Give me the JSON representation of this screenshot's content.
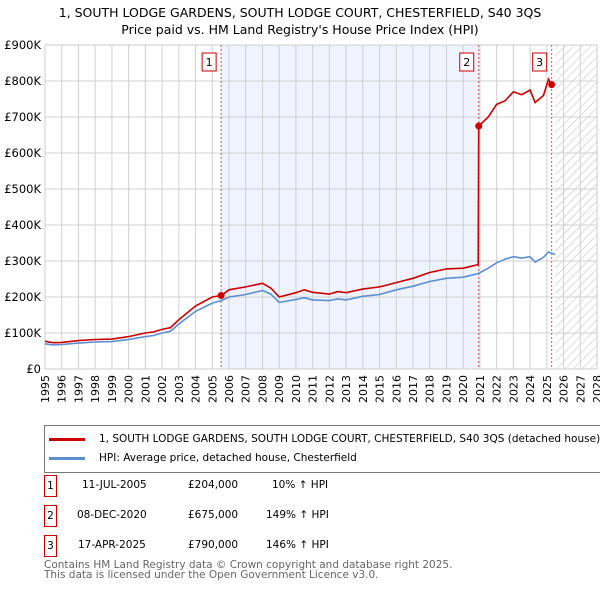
{
  "chart_data": {
    "type": "line",
    "title": "1, SOUTH LODGE GARDENS, SOUTH LODGE COURT, CHESTERFIELD, S40 3QS",
    "subtitle": "Price paid vs. HM Land Registry's House Price Index (HPI)",
    "xlim": [
      1995,
      2028
    ],
    "ylim": [
      0,
      900000
    ],
    "x_ticks": [
      "1995",
      "1996",
      "1997",
      "1998",
      "1999",
      "2000",
      "2001",
      "2002",
      "2003",
      "2004",
      "2005",
      "2006",
      "2007",
      "2008",
      "2009",
      "2010",
      "2011",
      "2012",
      "2013",
      "2014",
      "2015",
      "2016",
      "2017",
      "2018",
      "2019",
      "2020",
      "2021",
      "2022",
      "2023",
      "2024",
      "2025",
      "2026",
      "2027",
      "2028"
    ],
    "y_ticks": [
      {
        "v": 0,
        "label": "£0"
      },
      {
        "v": 100000,
        "label": "£100K"
      },
      {
        "v": 200000,
        "label": "£200K"
      },
      {
        "v": 300000,
        "label": "£300K"
      },
      {
        "v": 400000,
        "label": "£400K"
      },
      {
        "v": 500000,
        "label": "£500K"
      },
      {
        "v": 600000,
        "label": "£600K"
      },
      {
        "v": 700000,
        "label": "£700K"
      },
      {
        "v": 800000,
        "label": "£800K"
      },
      {
        "v": 900000,
        "label": "£900K"
      }
    ],
    "grid": true,
    "shaded_range": [
      2005.53,
      2020.93
    ],
    "forecast_hatch_from": 2025.5,
    "series": [
      {
        "name": "1, SOUTH LODGE GARDENS, SOUTH LODGE COURT, CHESTERFIELD, S40 3QS (detached house)",
        "color": "#cc0000",
        "x": [
          1995,
          1995.5,
          1996,
          1997,
          1998,
          1999,
          2000,
          2001,
          2001.5,
          2002,
          2002.5,
          2003,
          2004,
          2005,
          2005.53,
          2006,
          2007,
          2008,
          2008.5,
          2009,
          2010,
          2010.5,
          2011,
          2012,
          2012.5,
          2013,
          2014,
          2015,
          2016,
          2017,
          2018,
          2019,
          2020,
          2020.9,
          2020.93,
          2021.5,
          2022,
          2022.5,
          2023,
          2023.5,
          2024,
          2024.3,
          2024.8,
          2025,
          2025.1,
          2025.29
        ],
        "y": [
          77000,
          73000,
          74000,
          79000,
          82000,
          83000,
          90000,
          100000,
          103000,
          110000,
          115000,
          137000,
          175000,
          200000,
          204000,
          220000,
          228000,
          238000,
          225000,
          200000,
          212000,
          220000,
          213000,
          208000,
          215000,
          212000,
          222000,
          228000,
          240000,
          252000,
          268000,
          278000,
          280000,
          290000,
          675000,
          700000,
          735000,
          745000,
          770000,
          762000,
          775000,
          740000,
          760000,
          790000,
          805000,
          790000
        ]
      },
      {
        "name": "HPI: Average price, detached house, Chesterfield",
        "color": "#5b8fd0",
        "x": [
          1995,
          1995.5,
          1996,
          1997,
          1998,
          1999,
          2000,
          2001,
          2001.5,
          2002,
          2002.5,
          2003,
          2004,
          2005,
          2005.53,
          2006,
          2007,
          2008,
          2008.5,
          2009,
          2010,
          2010.5,
          2011,
          2012,
          2012.5,
          2013,
          2014,
          2015,
          2016,
          2017,
          2018,
          2019,
          2020,
          2020.9,
          2021.5,
          2022,
          2022.5,
          2023,
          2023.5,
          2024,
          2024.3,
          2024.8,
          2025,
          2025.1,
          2025.5
        ],
        "y": [
          70000,
          67000,
          68000,
          72000,
          75000,
          76000,
          82000,
          90000,
          93000,
          100000,
          105000,
          125000,
          160000,
          183000,
          190000,
          200000,
          207000,
          218000,
          208000,
          185000,
          193000,
          198000,
          192000,
          190000,
          195000,
          192000,
          202000,
          207000,
          220000,
          230000,
          243000,
          252000,
          255000,
          265000,
          280000,
          295000,
          305000,
          312000,
          308000,
          312000,
          297000,
          310000,
          320000,
          325000,
          318000
        ]
      }
    ],
    "annotations": [
      {
        "label": "1",
        "x": 2005.53,
        "y": 204000
      },
      {
        "label": "2",
        "x": 2020.93,
        "y": 675000
      },
      {
        "label": "3",
        "x": 2025.29,
        "y": 790000
      }
    ]
  },
  "legend": {
    "red": "1, SOUTH LODGE GARDENS, SOUTH LODGE COURT, CHESTERFIELD, S40 3QS (detached house)",
    "blue": "HPI: Average price, detached house, Chesterfield"
  },
  "transactions": [
    {
      "num": "1",
      "date": "11-JUL-2005",
      "price": "£204,000",
      "hpi": "10% ↑ HPI"
    },
    {
      "num": "2",
      "date": "08-DEC-2020",
      "price": "£675,000",
      "hpi": "149% ↑ HPI"
    },
    {
      "num": "3",
      "date": "17-APR-2025",
      "price": "£790,000",
      "hpi": "146% ↑ HPI"
    }
  ],
  "footer": {
    "line1": "Contains HM Land Registry data © Crown copyright and database right 2025.",
    "line2": "This data is licensed under the Open Government Licence v3.0."
  }
}
